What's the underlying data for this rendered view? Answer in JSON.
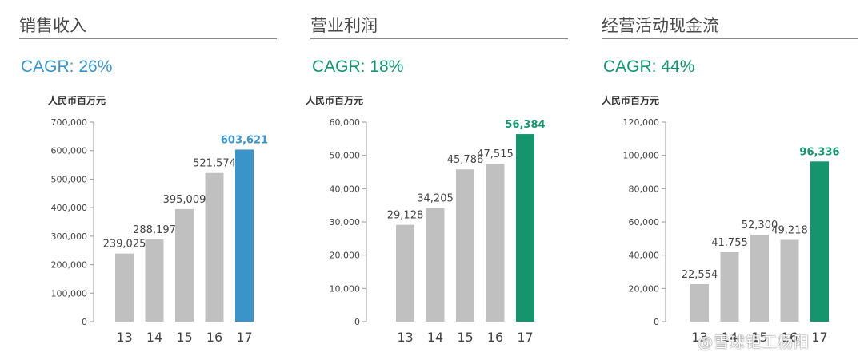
{
  "watermark": "@雪球钜工杨阳",
  "colors": {
    "bar_grey": "#c0c0c1",
    "sales_accent": "#3a94c8",
    "green_accent": "#14956c",
    "tick_text": "#444444"
  },
  "chart_data": [
    {
      "type": "bar",
      "title": "销售收入",
      "cagr": "CAGR: 26%",
      "unit": "人民币百万元",
      "categories": [
        "13",
        "14",
        "15",
        "16",
        "17"
      ],
      "values": [
        239025,
        288197,
        395009,
        521574,
        603621
      ],
      "value_labels": [
        "239,025",
        "288,197",
        "395,009",
        "521,574",
        "603,621"
      ],
      "highlight_index": 4,
      "accent": "#3a94c8",
      "ylim": [
        0,
        700000
      ],
      "yticks": [
        0,
        100000,
        200000,
        300000,
        400000,
        500000,
        600000,
        700000
      ],
      "ytick_labels": [
        "0",
        "100,000",
        "200,000",
        "300,000",
        "400,000",
        "500,000",
        "600,000",
        "700,000"
      ]
    },
    {
      "type": "bar",
      "title": "营业利润",
      "cagr": "CAGR: 18%",
      "unit": "人民币百万元",
      "categories": [
        "13",
        "14",
        "15",
        "16",
        "17"
      ],
      "values": [
        29128,
        34205,
        45786,
        47515,
        56384
      ],
      "value_labels": [
        "29,128",
        "34,205",
        "45,786",
        "47,515",
        "56,384"
      ],
      "highlight_index": 4,
      "accent": "#14956c",
      "ylim": [
        0,
        60000
      ],
      "yticks": [
        0,
        10000,
        20000,
        30000,
        40000,
        50000,
        60000
      ],
      "ytick_labels": [
        "0",
        "10,000",
        "20,000",
        "30,000",
        "40,000",
        "50,000",
        "60,000"
      ]
    },
    {
      "type": "bar",
      "title": "经营活动现金流",
      "cagr": "CAGR: 44%",
      "unit": "人民币百万元",
      "categories": [
        "13",
        "14",
        "15",
        "16",
        "17"
      ],
      "values": [
        22554,
        41755,
        52300,
        49218,
        96336
      ],
      "value_labels": [
        "22,554",
        "41,755",
        "52,300",
        "49,218",
        "96,336"
      ],
      "highlight_index": 4,
      "accent": "#14956c",
      "ylim": [
        0,
        120000
      ],
      "yticks": [
        0,
        20000,
        40000,
        60000,
        80000,
        100000,
        120000
      ],
      "ytick_labels": [
        "0",
        "20,000",
        "40,000",
        "60,000",
        "80,000",
        "100,000",
        "120,000"
      ]
    }
  ]
}
